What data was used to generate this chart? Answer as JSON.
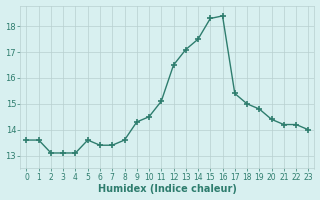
{
  "x": [
    0,
    1,
    2,
    3,
    4,
    5,
    6,
    7,
    8,
    9,
    10,
    11,
    12,
    13,
    14,
    15,
    16,
    17,
    18,
    19,
    20,
    21,
    22,
    23
  ],
  "y": [
    13.6,
    13.6,
    13.1,
    13.1,
    13.1,
    13.6,
    13.4,
    13.4,
    13.6,
    14.3,
    14.5,
    15.1,
    16.5,
    17.1,
    17.5,
    18.3,
    18.4,
    15.4,
    15.0,
    14.8,
    14.4,
    14.2,
    14.2,
    14.0
  ],
  "line_color": "#2e7d6e",
  "marker": "+",
  "markersize": 4,
  "markeredgewidth": 1.2,
  "linewidth": 1.0,
  "bg_color": "#d8f0f0",
  "grid_color": "#b8d0d0",
  "xlabel": "Humidex (Indice chaleur)",
  "xlabel_fontsize": 7,
  "xlabel_color": "#2e7d6e",
  "ylabel_ticks": [
    13,
    14,
    15,
    16,
    17,
    18
  ],
  "xlim": [
    -0.5,
    23.5
  ],
  "ylim": [
    12.5,
    18.8
  ],
  "xtick_labels": [
    "0",
    "1",
    "2",
    "3",
    "4",
    "5",
    "6",
    "7",
    "8",
    "9",
    "10",
    "11",
    "12",
    "13",
    "14",
    "15",
    "16",
    "17",
    "18",
    "19",
    "20",
    "21",
    "22",
    "23"
  ],
  "tick_color": "#2e7d6e",
  "ytick_fontsize": 6,
  "xtick_fontsize": 5.5
}
